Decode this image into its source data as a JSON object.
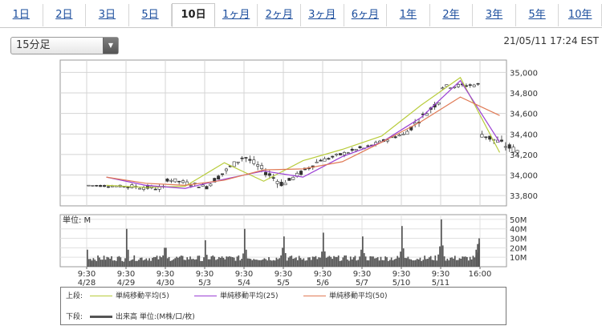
{
  "tabs": [
    {
      "label": "1日",
      "active": false
    },
    {
      "label": "2日",
      "active": false
    },
    {
      "label": "3日",
      "active": false
    },
    {
      "label": "5日",
      "active": false
    },
    {
      "label": "10日",
      "active": true
    },
    {
      "label": "1ヶ月",
      "active": false
    },
    {
      "label": "2ヶ月",
      "active": false
    },
    {
      "label": "3ヶ月",
      "active": false
    },
    {
      "label": "6ヶ月",
      "active": false
    },
    {
      "label": "1年",
      "active": false
    },
    {
      "label": "2年",
      "active": false
    },
    {
      "label": "3年",
      "active": false
    },
    {
      "label": "5年",
      "active": false
    },
    {
      "label": "10年",
      "active": false
    }
  ],
  "controls": {
    "interval_value": "15分足",
    "timestamp": "21/05/11 17:24 EST"
  },
  "legend": {
    "upper_label": "上段:",
    "lower_label": "下段:",
    "ma5": "単純移動平均(5)",
    "ma25": "単純移動平均(25)",
    "ma50": "単純移動平均(50)",
    "volume": "出来高 単位:(M株/口/枚)"
  },
  "colors": {
    "ma5": "#b8cc3c",
    "ma25": "#9b3fd4",
    "ma50": "#e07a55",
    "candle_up": "#ffffff",
    "candle_down": "#333333",
    "volume": "#555555"
  },
  "chart_data": [
    {
      "type": "candlestick",
      "ylim": [
        33700,
        35120
      ],
      "y_ticks": [
        33800,
        34000,
        34200,
        34400,
        34600,
        34800,
        35000
      ],
      "y_tick_labels": [
        "33,800",
        "34,000",
        "34,200",
        "34,400",
        "34,600",
        "34,800",
        "35,000"
      ],
      "grid": true,
      "sessions": [
        {
          "open": 33900,
          "high": 33960,
          "low": 33840,
          "close": 33890
        },
        {
          "open": 33890,
          "high": 34060,
          "low": 33800,
          "close": 33870
        },
        {
          "open": 33960,
          "high": 34080,
          "low": 33840,
          "close": 33890
        },
        {
          "open": 33890,
          "high": 34200,
          "low": 33880,
          "close": 34170
        },
        {
          "open": 34170,
          "high": 34190,
          "low": 33800,
          "close": 33920
        },
        {
          "open": 33920,
          "high": 34240,
          "low": 33950,
          "close": 34150
        },
        {
          "open": 34150,
          "high": 34330,
          "low": 34110,
          "close": 34260
        },
        {
          "open": 34260,
          "high": 34450,
          "low": 34250,
          "close": 34390
        },
        {
          "open": 34390,
          "high": 34730,
          "low": 34390,
          "close": 34720
        },
        {
          "open": 34860,
          "high": 35060,
          "low": 34820,
          "close": 34880
        },
        {
          "open": 34400,
          "high": 34510,
          "low": 34080,
          "close": 34230
        }
      ]
    },
    {
      "type": "line",
      "series": [
        {
          "name": "単純移動平均(5)",
          "values": [
            33900,
            33880,
            33890,
            34120,
            33940,
            34140,
            34250,
            34380,
            34680,
            34950,
            34220
          ]
        },
        {
          "name": "単純移動平均(25)",
          "values": [
            33980,
            33900,
            33870,
            33960,
            34040,
            33980,
            34180,
            34320,
            34560,
            34920,
            34320
          ]
        },
        {
          "name": "単純移動平均(50)",
          "values": [
            33980,
            33920,
            33900,
            33950,
            34050,
            34060,
            34130,
            34320,
            34520,
            34760,
            34580
          ]
        }
      ]
    },
    {
      "type": "bar",
      "ylabel": "単位: M",
      "ylim": [
        0,
        55
      ],
      "y_ticks": [
        10,
        20,
        30,
        40,
        50
      ],
      "y_tick_labels": [
        "10M",
        "20M",
        "30M",
        "40M",
        "50M"
      ],
      "x_tick_labels": [
        {
          "time": "9:30",
          "date": "4/28"
        },
        {
          "time": "9:30",
          "date": "4/29"
        },
        {
          "time": "9:30",
          "date": "4/30"
        },
        {
          "time": "9:30",
          "date": "5/3"
        },
        {
          "time": "9:30",
          "date": "5/4"
        },
        {
          "time": "9:30",
          "date": "5/5"
        },
        {
          "time": "9:30",
          "date": "5/6"
        },
        {
          "time": "9:30",
          "date": "5/7"
        },
        {
          "time": "9:30",
          "date": "5/10"
        },
        {
          "time": "9:30",
          "date": "5/11"
        },
        {
          "time": "16:00",
          "date": ""
        }
      ],
      "session_open_peaks": [
        18,
        40,
        20,
        28,
        40,
        32,
        36,
        32,
        43,
        50,
        30
      ]
    }
  ]
}
